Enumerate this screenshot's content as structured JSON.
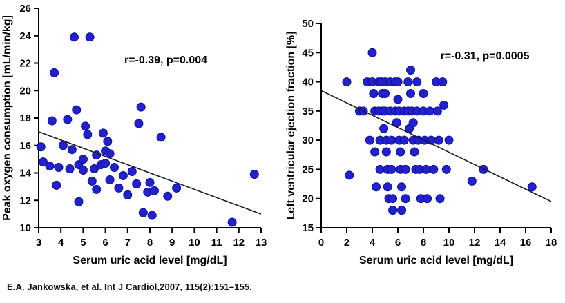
{
  "caption": "E.A. Jankowska, et al. Int J Cardiol,2007, 115(2):151–155.",
  "colors": {
    "dot": "#2121cd",
    "dot_edge": "#0d0d8f",
    "axis": "#000000",
    "trend": "#1a1a1a"
  },
  "chart_data": [
    {
      "type": "scatter",
      "title": "",
      "xlabel": "Serum uric acid level [mg/dL]",
      "ylabel": "Peak oxygen consumption [mL/min/kg]",
      "annotation": "r=-0.39, p=0.004",
      "xlim": [
        3,
        13
      ],
      "ylim": [
        10,
        26
      ],
      "xticks": [
        3,
        4,
        5,
        6,
        7,
        8,
        9,
        10,
        11,
        12,
        13
      ],
      "yticks": [
        10,
        12,
        14,
        16,
        18,
        20,
        22,
        24,
        26
      ],
      "grid": false,
      "legend": "none",
      "trendline": {
        "x": [
          3,
          13
        ],
        "y": [
          17.0,
          11.0
        ]
      },
      "points": [
        [
          3.1,
          15.9
        ],
        [
          3.2,
          14.8
        ],
        [
          3.5,
          14.5
        ],
        [
          3.6,
          17.8
        ],
        [
          3.7,
          21.3
        ],
        [
          3.8,
          13.1
        ],
        [
          3.9,
          14.4
        ],
        [
          4.1,
          16.0
        ],
        [
          4.3,
          17.9
        ],
        [
          4.4,
          14.3
        ],
        [
          4.5,
          15.7
        ],
        [
          4.6,
          23.9
        ],
        [
          4.7,
          18.6
        ],
        [
          4.8,
          14.6
        ],
        [
          4.8,
          11.9
        ],
        [
          5.0,
          15.0
        ],
        [
          5.0,
          14.2
        ],
        [
          5.1,
          17.4
        ],
        [
          5.2,
          16.8
        ],
        [
          5.3,
          23.9
        ],
        [
          5.4,
          13.4
        ],
        [
          5.5,
          14.3
        ],
        [
          5.6,
          15.3
        ],
        [
          5.6,
          12.8
        ],
        [
          5.8,
          14.6
        ],
        [
          5.9,
          16.9
        ],
        [
          6.0,
          15.6
        ],
        [
          6.0,
          14.7
        ],
        [
          6.1,
          16.3
        ],
        [
          6.2,
          15.4
        ],
        [
          6.2,
          13.5
        ],
        [
          6.4,
          14.4
        ],
        [
          6.6,
          12.9
        ],
        [
          6.8,
          13.8
        ],
        [
          7.0,
          12.4
        ],
        [
          7.2,
          14.1
        ],
        [
          7.4,
          13.2
        ],
        [
          7.5,
          17.6
        ],
        [
          7.6,
          18.8
        ],
        [
          7.7,
          11.1
        ],
        [
          7.9,
          12.6
        ],
        [
          8.0,
          13.3
        ],
        [
          8.1,
          10.9
        ],
        [
          8.2,
          12.7
        ],
        [
          8.5,
          16.6
        ],
        [
          8.8,
          12.3
        ],
        [
          9.2,
          12.9
        ],
        [
          11.7,
          10.4
        ],
        [
          12.7,
          13.9
        ]
      ]
    },
    {
      "type": "scatter",
      "title": "",
      "xlabel": "Serum uric acid level [mg/dL]",
      "ylabel": "Left ventricular ejection fraction [%]",
      "annotation": "r=-0.31, p=0.0005",
      "xlim": [
        0,
        18
      ],
      "ylim": [
        15,
        50
      ],
      "xticks": [
        0,
        2,
        4,
        6,
        8,
        10,
        12,
        14,
        16,
        18
      ],
      "yticks": [
        15,
        20,
        25,
        30,
        35,
        40,
        45,
        50
      ],
      "grid": false,
      "legend": "none",
      "trendline": {
        "x": [
          0,
          18
        ],
        "y": [
          38.5,
          19.5
        ]
      },
      "points": [
        [
          2.0,
          40
        ],
        [
          2.2,
          24
        ],
        [
          3.0,
          35
        ],
        [
          3.3,
          35
        ],
        [
          3.6,
          40
        ],
        [
          3.8,
          30
        ],
        [
          4.0,
          45
        ],
        [
          4.0,
          40
        ],
        [
          4.1,
          38
        ],
        [
          4.2,
          35
        ],
        [
          4.2,
          28
        ],
        [
          4.3,
          22
        ],
        [
          4.5,
          40
        ],
        [
          4.5,
          35
        ],
        [
          4.6,
          30
        ],
        [
          4.6,
          25
        ],
        [
          4.7,
          40
        ],
        [
          4.8,
          38
        ],
        [
          4.8,
          35
        ],
        [
          4.9,
          32
        ],
        [
          5.0,
          40
        ],
        [
          5.0,
          38
        ],
        [
          5.0,
          35
        ],
        [
          5.1,
          30
        ],
        [
          5.1,
          28
        ],
        [
          5.2,
          25
        ],
        [
          5.2,
          22
        ],
        [
          5.3,
          20
        ],
        [
          5.4,
          40
        ],
        [
          5.4,
          35
        ],
        [
          5.5,
          30
        ],
        [
          5.5,
          25
        ],
        [
          5.6,
          20
        ],
        [
          5.6,
          18
        ],
        [
          5.8,
          40
        ],
        [
          5.8,
          35
        ],
        [
          5.9,
          33
        ],
        [
          6.0,
          40
        ],
        [
          6.0,
          37
        ],
        [
          6.1,
          35
        ],
        [
          6.1,
          30
        ],
        [
          6.2,
          28
        ],
        [
          6.2,
          25
        ],
        [
          6.3,
          22
        ],
        [
          6.3,
          18
        ],
        [
          6.5,
          35
        ],
        [
          6.5,
          30
        ],
        [
          6.6,
          25
        ],
        [
          6.6,
          20
        ],
        [
          6.8,
          40
        ],
        [
          6.8,
          35
        ],
        [
          6.9,
          32
        ],
        [
          7.0,
          42
        ],
        [
          7.0,
          38
        ],
        [
          7.1,
          35
        ],
        [
          7.2,
          33
        ],
        [
          7.2,
          30
        ],
        [
          7.3,
          28
        ],
        [
          7.4,
          25
        ],
        [
          7.5,
          40
        ],
        [
          7.5,
          35
        ],
        [
          7.6,
          30
        ],
        [
          7.7,
          25
        ],
        [
          7.8,
          20
        ],
        [
          8.0,
          38
        ],
        [
          8.0,
          35
        ],
        [
          8.1,
          30
        ],
        [
          8.2,
          25
        ],
        [
          8.3,
          20
        ],
        [
          8.5,
          35
        ],
        [
          8.6,
          30
        ],
        [
          8.8,
          25
        ],
        [
          9.0,
          40
        ],
        [
          9.1,
          35
        ],
        [
          9.2,
          30
        ],
        [
          9.3,
          20
        ],
        [
          9.5,
          40
        ],
        [
          9.6,
          36
        ],
        [
          9.8,
          25
        ],
        [
          10.0,
          30
        ],
        [
          11.8,
          23
        ],
        [
          12.7,
          25
        ],
        [
          16.5,
          22
        ]
      ]
    }
  ]
}
